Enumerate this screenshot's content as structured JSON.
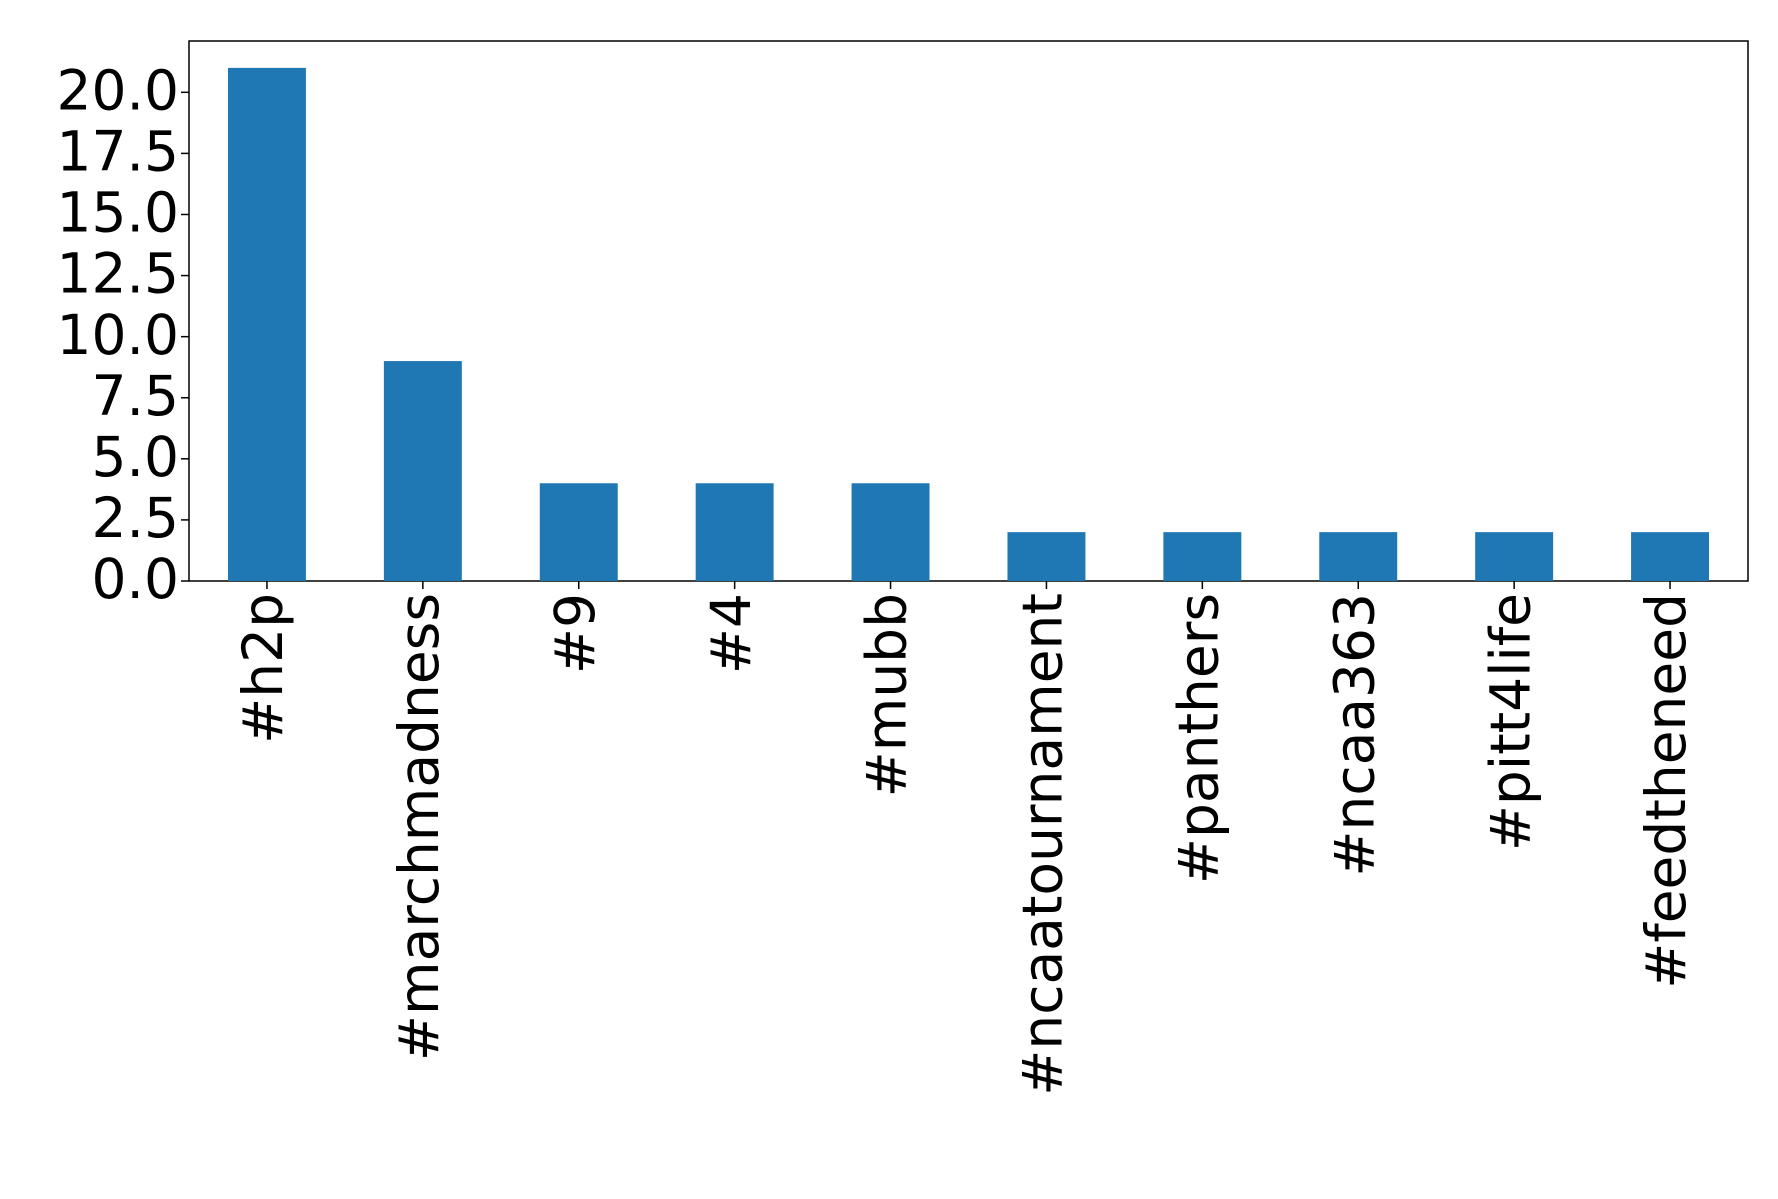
{
  "chart_data": {
    "type": "bar",
    "categories": [
      "#h2p",
      "#marchmadness",
      "#9",
      "#4",
      "#mubb",
      "#ncaatournament",
      "#panthers",
      "#ncaa363",
      "#pitt4life",
      "#feedtheneed"
    ],
    "values": [
      21,
      9,
      4,
      4,
      4,
      2,
      2,
      2,
      2,
      2
    ],
    "color": "#1f77b4",
    "ylim": [
      0,
      22.1
    ],
    "yticks": [
      {
        "value": 0,
        "label": "0.0"
      },
      {
        "value": 2.5,
        "label": "2.5"
      },
      {
        "value": 5,
        "label": "5.0"
      },
      {
        "value": 7.5,
        "label": "7.5"
      },
      {
        "value": 10,
        "label": "10.0"
      },
      {
        "value": 12.5,
        "label": "12.5"
      },
      {
        "value": 15,
        "label": "15.0"
      },
      {
        "value": 17.5,
        "label": "17.5"
      },
      {
        "value": 20,
        "label": "20.0"
      }
    ],
    "grid": false
  }
}
